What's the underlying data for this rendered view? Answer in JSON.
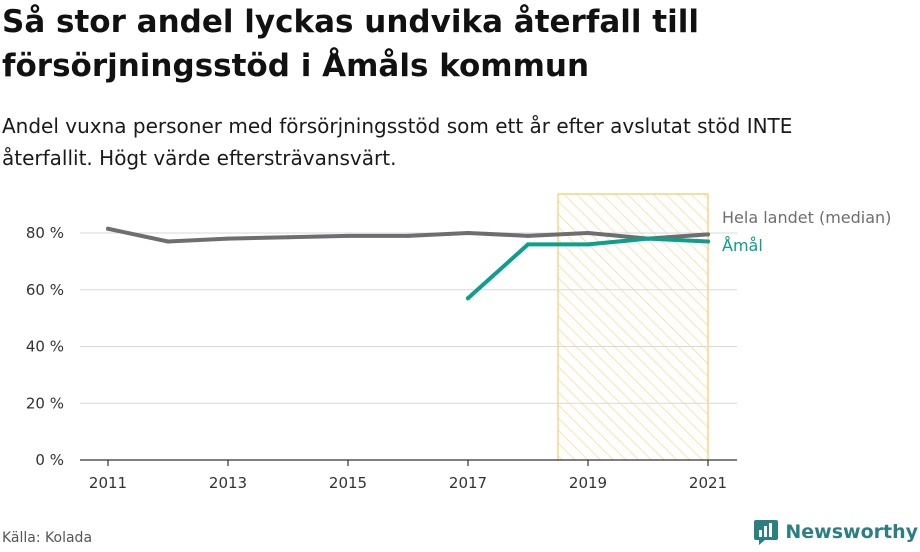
{
  "title": "Så stor andel lyckas undvika återfall till försörjningsstöd i Åmåls kommun",
  "subtitle": "Andel vuxna personer med försörjningsstöd som ett år efter avslutat stöd INTE återfallit. Högt värde eftersträvansvärt.",
  "source": "Källa: Kolada",
  "brand": "Newsworthy",
  "colors": {
    "national": "#6e6e70",
    "local": "#0b9f8c",
    "highlight_stroke": "#f6cb69",
    "highlight_hatch": "#f9d98a",
    "grid": "#d9d9d9",
    "brand": "#2a7f83"
  },
  "chart_data": {
    "type": "line",
    "xlim": [
      2011,
      2021
    ],
    "ylim": [
      0,
      80
    ],
    "x_ticks": [
      2011,
      2013,
      2015,
      2017,
      2019,
      2021
    ],
    "y_ticks": [
      {
        "value": 0,
        "label": "0 %"
      },
      {
        "value": 20,
        "label": "20 %"
      },
      {
        "value": 40,
        "label": "40 %"
      },
      {
        "value": 60,
        "label": "60 %"
      },
      {
        "value": 80,
        "label": "80 %"
      }
    ],
    "highlight_range": [
      2018.5,
      2021
    ],
    "series": [
      {
        "name": "Hela landet (median)",
        "color": "#6e6e70",
        "x": [
          2011,
          2012,
          2013,
          2014,
          2015,
          2016,
          2017,
          2018,
          2019,
          2020,
          2021
        ],
        "values": [
          81.5,
          77,
          78,
          78.5,
          79,
          79,
          80,
          79,
          80,
          78,
          79.5
        ]
      },
      {
        "name": "Åmål",
        "color": "#0b9f8c",
        "x": [
          2017,
          2018,
          2019,
          2020,
          2021
        ],
        "values": [
          57,
          76,
          76,
          78,
          77
        ]
      }
    ]
  }
}
